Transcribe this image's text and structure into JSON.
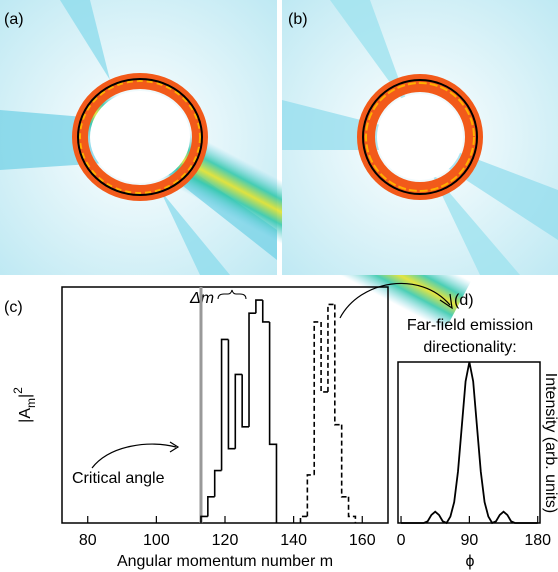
{
  "panel_labels": [
    "(a)",
    "(b)"
  ],
  "chart_data": [
    {
      "type": "step",
      "label": "(c)",
      "xlabel": "Angular momentum number m",
      "ylabel": [
        "|A",
        "m",
        "|",
        "2"
      ],
      "xlim": [
        72.5,
        167.5
      ],
      "xticks": [
        80,
        100,
        120,
        140,
        160
      ],
      "ylim": [
        0,
        1.08
      ],
      "critical_m": 113,
      "critical_label": "Critical angle",
      "delta_m_label": "Δm",
      "series": [
        {
          "bins": [
            113,
            115,
            117,
            119,
            121,
            123,
            125,
            127,
            129,
            131,
            133,
            135
          ],
          "values": [
            0.03,
            0.12,
            0.24,
            0.84,
            0.34,
            0.68,
            0.44,
            0.96,
            1.02,
            0.92,
            0.36
          ],
          "color": "#000000",
          "dashed": false
        },
        {
          "bins": [
            142,
            144,
            146,
            148,
            150,
            152,
            154,
            156,
            158
          ],
          "values": [
            0.03,
            0.22,
            0.92,
            0.6,
            1.0,
            0.45,
            0.12,
            0.03
          ],
          "color": "#000000",
          "dashed": true
        }
      ]
    },
    {
      "type": "line",
      "label": "(d)",
      "title_lines": [
        "Far-field emission",
        "directionality:"
      ],
      "xlabel": "ϕ",
      "ylabel": "Intensity (arb. units)",
      "xlim": [
        -4,
        183
      ],
      "xticks": [
        0,
        90,
        180
      ],
      "ylim": [
        0,
        1.0
      ],
      "color": "#000000",
      "x": [
        0,
        5,
        10,
        15,
        20,
        25,
        30,
        35,
        40,
        45,
        50,
        55,
        60,
        65,
        70,
        75,
        80,
        85,
        90,
        95,
        100,
        105,
        110,
        115,
        120,
        125,
        130,
        135,
        140,
        145,
        150,
        155,
        160,
        165,
        170,
        175,
        180
      ],
      "values": [
        0,
        0,
        0,
        0,
        0,
        0,
        0,
        0.01,
        0.05,
        0.07,
        0.05,
        0.01,
        0,
        0.04,
        0.13,
        0.32,
        0.6,
        0.88,
        1,
        0.88,
        0.6,
        0.32,
        0.13,
        0.04,
        0,
        0.01,
        0.05,
        0.07,
        0.05,
        0.01,
        0,
        0,
        0,
        0,
        0,
        0,
        0
      ]
    }
  ]
}
